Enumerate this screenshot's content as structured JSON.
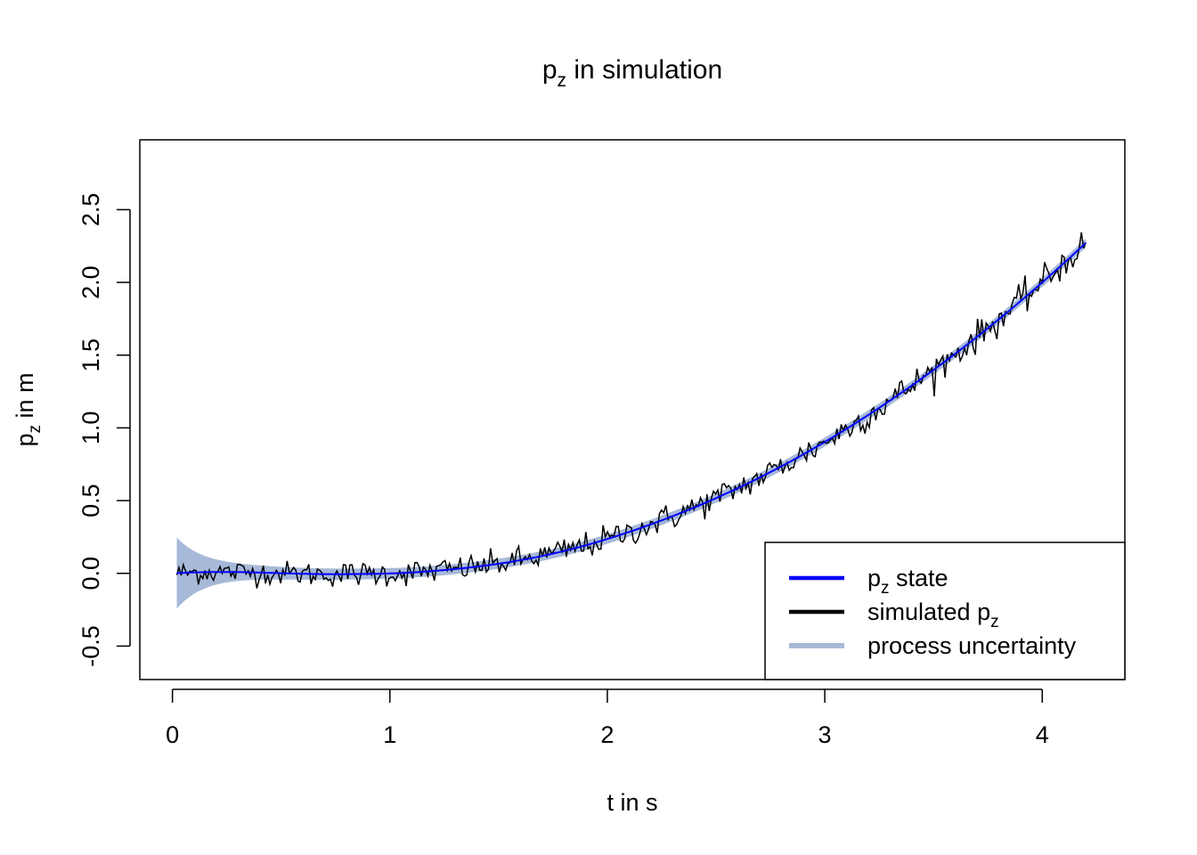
{
  "chart_data": {
    "type": "line",
    "title": {
      "main": "p",
      "sub": "z",
      "rest": " in simulation"
    },
    "xlabel": "t in s",
    "ylabel": {
      "main": "p",
      "sub": "z",
      "rest": " in m"
    },
    "xlim": [
      -0.15,
      4.38
    ],
    "ylim": [
      -0.73,
      2.98
    ],
    "x_ticks": [
      0,
      1,
      2,
      3,
      4
    ],
    "x_tick_labels": [
      "0",
      "1",
      "2",
      "3",
      "4"
    ],
    "y_ticks": [
      -0.5,
      0.0,
      0.5,
      1.0,
      1.5,
      2.0,
      2.5
    ],
    "y_tick_labels": [
      "-0.5",
      "0.0",
      "0.5",
      "1.0",
      "1.5",
      "2.0",
      "2.5"
    ],
    "grid": false,
    "legend_position": "bottom-right",
    "t_range": [
      0.02,
      4.2
    ],
    "state_curve": {
      "description_model": "p_z(t) = 0.5 * g * max(t - 0.95, 0)^2",
      "g": 0.43
    },
    "series": [
      {
        "name": {
          "main": "p",
          "sub": "z",
          "rest": " state"
        },
        "color": "#0000ff",
        "t": [
          0.02,
          0.5,
          1.0,
          1.5,
          2.0,
          2.5,
          3.0,
          3.5,
          4.0,
          4.2
        ],
        "values": [
          0.0,
          0.0,
          0.01,
          0.09,
          0.25,
          0.48,
          0.78,
          1.24,
          1.88,
          2.28
        ]
      },
      {
        "name": {
          "main": "simulated ",
          "sub": "z",
          "rest": "",
          "prefix": "p"
        },
        "color": "#000000",
        "noise_sd": 0.04
      },
      {
        "name": {
          "main": "process uncertainty",
          "sub": "",
          "rest": ""
        },
        "color": "#a7b9d8",
        "band_halfwidth_start": 0.23,
        "band_halfwidth_end": 0.03
      }
    ]
  }
}
